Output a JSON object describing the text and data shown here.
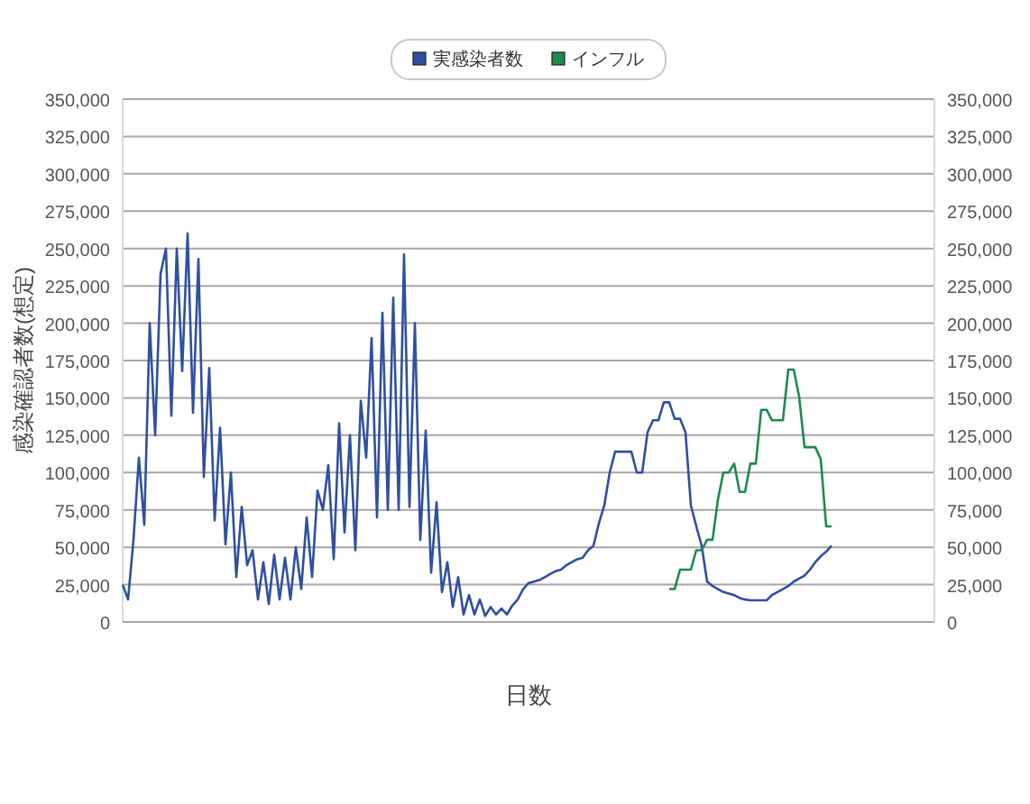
{
  "chart_data": {
    "type": "line",
    "xlabel": "日数",
    "ylabel": "感染確認者数(想定)",
    "categories": [
      null,
      null,
      null,
      null,
      null,
      null,
      null,
      null,
      null,
      null,
      null,
      null,
      null,
      null,
      null,
      null,
      null,
      null,
      null,
      null,
      null,
      null,
      null,
      null,
      null,
      null,
      null,
      null,
      null,
      null,
      null,
      null,
      null,
      null,
      null,
      null,
      null,
      null,
      null,
      null,
      null,
      null,
      null,
      null,
      null,
      null,
      null,
      null,
      null,
      null,
      null,
      null,
      null,
      null,
      null,
      null,
      null,
      null,
      null,
      null,
      null,
      null,
      null,
      null,
      null,
      null,
      null,
      null,
      null,
      null,
      null,
      null,
      null,
      null,
      null,
      null,
      null,
      null,
      null,
      null,
      null,
      null,
      null,
      null,
      null,
      null,
      null,
      null,
      null,
      null,
      null,
      null,
      null,
      null,
      null,
      null,
      null,
      null,
      null,
      null,
      null,
      null,
      null,
      null,
      null,
      null,
      null,
      null,
      null,
      null,
      null,
      null,
      null,
      null,
      null,
      null,
      null,
      null,
      null,
      null,
      null,
      null,
      null,
      null,
      null,
      null,
      null,
      null,
      null,
      null,
      null,
      null,
      null,
      null,
      null,
      null,
      null,
      null,
      null,
      null,
      null,
      null,
      null,
      null,
      null,
      null,
      null,
      null,
      null,
      null,
      null
    ],
    "ylim": [
      0,
      350000
    ],
    "yticks": [
      {
        "value": 0,
        "label": "0"
      },
      {
        "value": 25000,
        "label": "25,000"
      },
      {
        "value": 50000,
        "label": "50,000"
      },
      {
        "value": 75000,
        "label": "75,000"
      },
      {
        "value": 100000,
        "label": "100,000"
      },
      {
        "value": 125000,
        "label": "125,000"
      },
      {
        "value": 150000,
        "label": "150,000"
      },
      {
        "value": 175000,
        "label": "175,000"
      },
      {
        "value": 200000,
        "label": "200,000"
      },
      {
        "value": 225000,
        "label": "225,000"
      },
      {
        "value": 250000,
        "label": "250,000"
      },
      {
        "value": 275000,
        "label": "275,000"
      },
      {
        "value": 300000,
        "label": "300,000"
      },
      {
        "value": 325000,
        "label": "325,000"
      },
      {
        "value": 350000,
        "label": "350,000"
      }
    ],
    "y2lim": [
      0,
      350000
    ],
    "y2ticks": [
      {
        "value": 0,
        "label": "0"
      },
      {
        "value": 25000,
        "label": "25,000"
      },
      {
        "value": 50000,
        "label": "50,000"
      },
      {
        "value": 75000,
        "label": "75,000"
      },
      {
        "value": 100000,
        "label": "100,000"
      },
      {
        "value": 125000,
        "label": "125,000"
      },
      {
        "value": 150000,
        "label": "150,000"
      },
      {
        "value": 175000,
        "label": "175,000"
      },
      {
        "value": 200000,
        "label": "200,000"
      },
      {
        "value": 225000,
        "label": "225,000"
      },
      {
        "value": 250000,
        "label": "250,000"
      },
      {
        "value": 275000,
        "label": "275,000"
      },
      {
        "value": 300000,
        "label": "300,000"
      },
      {
        "value": 325000,
        "label": "325,000"
      },
      {
        "value": 350000,
        "label": "350,000"
      }
    ],
    "grid": "y",
    "legend": "top",
    "marker": "none",
    "line_style": "solid",
    "series": [
      {
        "name": "実感染者数",
        "color": "#2f4fa0",
        "values": [
          25000,
          15000,
          55000,
          110000,
          65000,
          200000,
          125000,
          233000,
          250000,
          138000,
          250000,
          168000,
          260000,
          140000,
          243000,
          97000,
          170000,
          68000,
          130000,
          52000,
          100000,
          30000,
          77000,
          38000,
          48000,
          15000,
          40000,
          12000,
          45000,
          15000,
          43000,
          15000,
          50000,
          22000,
          70000,
          30000,
          88000,
          75000,
          105000,
          42000,
          133000,
          60000,
          125000,
          48000,
          148000,
          110000,
          190000,
          70000,
          207000,
          75000,
          217000,
          75000,
          246000,
          77000,
          200000,
          55000,
          128000,
          33000,
          80000,
          20000,
          40000,
          10000,
          30000,
          5000,
          18000,
          5000,
          15000,
          4000,
          10000,
          5000,
          9000,
          5000,
          11000,
          15000,
          22000,
          26000,
          27000,
          28000,
          30000,
          32000,
          34000,
          35000,
          38000,
          40000,
          42000,
          43000,
          48000,
          51000,
          66000,
          78000,
          100000,
          114000,
          114000,
          114000,
          114000,
          100000,
          100000,
          127000,
          135000,
          135000,
          147000,
          147000,
          136000,
          136000,
          127000,
          78000,
          64000,
          51000,
          27000,
          24000,
          22000,
          20000,
          19000,
          18000,
          16000,
          15000,
          14500,
          14500,
          14500,
          14500,
          18000,
          20000,
          22000,
          24000,
          27000,
          29000,
          31000,
          35000,
          40000,
          44000,
          47000,
          51000,
          null,
          null,
          null,
          null,
          null,
          null,
          null,
          null,
          null,
          null,
          null,
          null,
          null,
          null,
          null,
          null,
          null,
          null,
          null
        ]
      },
      {
        "name": "インフル",
        "color": "#1e8a4c",
        "values": [
          null,
          null,
          null,
          null,
          null,
          null,
          null,
          null,
          null,
          null,
          null,
          null,
          null,
          null,
          null,
          null,
          null,
          null,
          null,
          null,
          null,
          null,
          null,
          null,
          null,
          null,
          null,
          null,
          null,
          null,
          null,
          null,
          null,
          null,
          null,
          null,
          null,
          null,
          null,
          null,
          null,
          null,
          null,
          null,
          null,
          null,
          null,
          null,
          null,
          null,
          null,
          null,
          null,
          null,
          null,
          null,
          null,
          null,
          null,
          null,
          null,
          null,
          null,
          null,
          null,
          null,
          null,
          null,
          null,
          null,
          null,
          null,
          null,
          null,
          null,
          null,
          null,
          null,
          null,
          null,
          null,
          null,
          null,
          null,
          null,
          null,
          null,
          null,
          null,
          null,
          null,
          null,
          null,
          null,
          null,
          null,
          null,
          null,
          null,
          null,
          null,
          22000,
          22000,
          35000,
          35000,
          35000,
          48000,
          48000,
          55000,
          55000,
          82000,
          100000,
          100000,
          106000,
          87000,
          87000,
          106000,
          106000,
          142000,
          142000,
          135000,
          135000,
          135000,
          169000,
          169000,
          151000,
          117000,
          117000,
          117000,
          109000,
          64000,
          64000,
          null,
          null,
          null,
          null,
          null,
          null,
          null,
          null,
          null,
          null,
          null,
          null,
          null,
          null,
          null,
          null,
          null,
          null,
          null
        ]
      }
    ]
  }
}
